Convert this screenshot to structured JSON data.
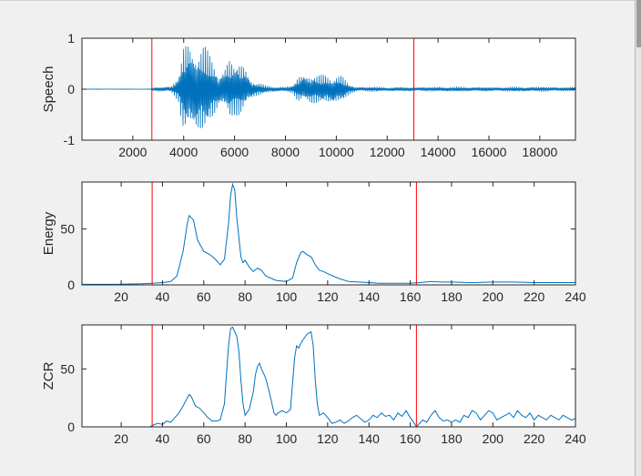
{
  "colors": {
    "series": "#0072bd",
    "marker": "#ff0000",
    "axis": "#262626",
    "background": "#f0f0f0",
    "plot_background": "#ffffff"
  },
  "chart_data": [
    {
      "type": "line",
      "ylabel": "Speech",
      "xlim": [
        1,
        19400
      ],
      "ylim": [
        -1,
        1
      ],
      "xticks": [
        2000,
        4000,
        6000,
        8000,
        10000,
        12000,
        14000,
        16000,
        18000
      ],
      "xtick_labels": [
        "2000",
        "4000",
        "6000",
        "8000",
        "10000",
        "12000",
        "14000",
        "16000",
        "18000"
      ],
      "yticks": [
        -1,
        0,
        1
      ],
      "ytick_labels": [
        "-1",
        "0",
        "1"
      ],
      "markers_x": [
        2750,
        13050
      ],
      "envelope": {
        "x": [
          1,
          2700,
          2750,
          3000,
          3500,
          3800,
          4000,
          4200,
          4400,
          4600,
          4800,
          5000,
          5200,
          5400,
          5600,
          5800,
          6000,
          6200,
          6400,
          6600,
          6800,
          7000,
          7200,
          7500,
          8000,
          8300,
          8500,
          8700,
          9000,
          9300,
          9600,
          9900,
          10200,
          10500,
          10800,
          11000,
          11300,
          11600,
          12000,
          12500,
          13050,
          13500,
          14000,
          15000,
          16000,
          17000,
          18000,
          19400
        ],
        "amp": [
          0.005,
          0.005,
          0.02,
          0.05,
          0.06,
          0.25,
          0.9,
          0.98,
          0.92,
          0.88,
          0.9,
          0.7,
          0.55,
          0.35,
          0.45,
          0.62,
          0.5,
          0.55,
          0.48,
          0.25,
          0.15,
          0.12,
          0.08,
          0.06,
          0.05,
          0.08,
          0.28,
          0.32,
          0.3,
          0.28,
          0.3,
          0.32,
          0.28,
          0.1,
          0.05,
          0.05,
          0.05,
          0.05,
          0.04,
          0.04,
          0.04,
          0.04,
          0.05,
          0.05,
          0.04,
          0.05,
          0.05,
          0.04
        ]
      }
    },
    {
      "type": "line",
      "ylabel": "Energy",
      "xlim": [
        1,
        240
      ],
      "ylim": [
        0,
        92
      ],
      "xticks": [
        20,
        40,
        60,
        80,
        100,
        120,
        140,
        160,
        180,
        200,
        220,
        240
      ],
      "xtick_labels": [
        "20",
        "40",
        "60",
        "80",
        "100",
        "120",
        "140",
        "160",
        "180",
        "200",
        "220",
        "240"
      ],
      "yticks": [
        0,
        50
      ],
      "ytick_labels": [
        "0",
        "50"
      ],
      "markers_x": [
        35,
        163
      ],
      "series": [
        {
          "x": [
            1,
            10,
            20,
            30,
            35,
            40,
            44,
            47,
            50,
            52,
            53,
            55,
            57,
            60,
            63,
            65,
            67,
            68,
            70,
            72,
            73,
            74,
            75,
            76,
            78,
            79,
            80,
            82,
            84,
            86,
            88,
            90,
            95,
            100,
            103,
            105,
            107,
            108,
            110,
            112,
            114,
            116,
            118,
            120,
            125,
            130,
            135,
            140,
            145,
            150,
            155,
            160,
            163,
            165,
            170,
            175,
            180,
            190,
            200,
            210,
            220,
            230,
            240
          ],
          "y": [
            0.5,
            0.5,
            0.6,
            1,
            1.5,
            2,
            3,
            8,
            30,
            55,
            62,
            58,
            40,
            30,
            27,
            24,
            20,
            18,
            23,
            55,
            80,
            90,
            85,
            60,
            25,
            20,
            22,
            16,
            12,
            15,
            13,
            8,
            4,
            3,
            6,
            20,
            29,
            30,
            27,
            25,
            18,
            13,
            12,
            10,
            6,
            3,
            2.5,
            2,
            1.5,
            1.5,
            1.5,
            1.5,
            1.8,
            2,
            3,
            2.5,
            2.5,
            2,
            2.5,
            2.5,
            2,
            2,
            2
          ]
        }
      ]
    },
    {
      "type": "line",
      "ylabel": "ZCR",
      "xlim": [
        1,
        240
      ],
      "ylim": [
        0,
        88
      ],
      "xticks": [
        20,
        40,
        60,
        80,
        100,
        120,
        140,
        160,
        180,
        200,
        220,
        240
      ],
      "xtick_labels": [
        "20",
        "40",
        "60",
        "80",
        "100",
        "120",
        "140",
        "160",
        "180",
        "200",
        "220",
        "240"
      ],
      "yticks": [
        0,
        50
      ],
      "ytick_labels": [
        "0",
        "50"
      ],
      "markers_x": [
        35,
        163
      ],
      "series": [
        {
          "x": [
            1,
            20,
            34,
            36,
            38,
            40,
            42,
            44,
            46,
            48,
            50,
            52,
            53,
            54,
            56,
            58,
            60,
            62,
            64,
            66,
            68,
            70,
            71,
            72,
            73,
            74,
            75,
            76,
            77,
            78,
            79,
            80,
            82,
            84,
            85,
            86,
            87,
            88,
            90,
            92,
            94,
            95,
            96,
            98,
            100,
            102,
            104,
            105,
            106,
            107,
            108,
            110,
            112,
            113,
            114,
            115,
            116,
            118,
            120,
            122,
            124,
            126,
            128,
            130,
            132,
            134,
            136,
            138,
            140,
            142,
            144,
            146,
            148,
            150,
            152,
            154,
            156,
            158,
            160,
            162,
            163,
            164,
            166,
            168,
            170,
            172,
            174,
            176,
            178,
            180,
            182,
            184,
            186,
            188,
            190,
            192,
            194,
            196,
            198,
            200,
            202,
            204,
            206,
            208,
            210,
            212,
            214,
            216,
            218,
            220,
            222,
            224,
            226,
            228,
            230,
            232,
            234,
            236,
            238,
            240
          ],
          "y": [
            0,
            0,
            0,
            2,
            3,
            2,
            5,
            4,
            8,
            12,
            18,
            25,
            28,
            26,
            18,
            16,
            12,
            8,
            5,
            5,
            6,
            20,
            45,
            70,
            85,
            86,
            82,
            78,
            65,
            40,
            20,
            10,
            15,
            30,
            45,
            52,
            55,
            50,
            42,
            28,
            12,
            10,
            12,
            14,
            12,
            15,
            60,
            70,
            68,
            72,
            75,
            80,
            82,
            70,
            40,
            20,
            10,
            12,
            8,
            3,
            4,
            6,
            3,
            5,
            8,
            10,
            7,
            4,
            6,
            10,
            8,
            12,
            9,
            10,
            6,
            12,
            9,
            14,
            8,
            3,
            0,
            2,
            6,
            4,
            10,
            14,
            8,
            5,
            6,
            4,
            6,
            4,
            10,
            8,
            14,
            12,
            6,
            10,
            14,
            12,
            6,
            8,
            10,
            12,
            8,
            14,
            10,
            8,
            12,
            6,
            10,
            8,
            6,
            10,
            8,
            6,
            10,
            8,
            6,
            7
          ]
        }
      ]
    }
  ]
}
